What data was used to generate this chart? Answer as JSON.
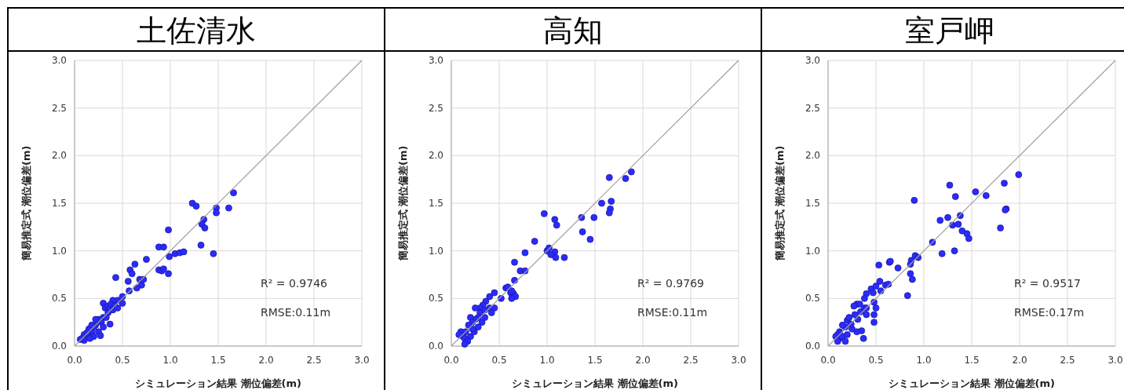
{
  "chart_data": [
    {
      "type": "scatter",
      "title": "土佐清水",
      "xlabel": "シミュレーション結果 潮位偏差(m)",
      "ylabel": "簡易推定式 潮位偏差(m)",
      "xlim": [
        0,
        3
      ],
      "ylim": [
        0,
        3
      ],
      "xticks": [
        {
          "value": 0,
          "label": "0.0"
        },
        {
          "value": 0.5,
          "label": "0.5"
        },
        {
          "value": 1,
          "label": "1.0"
        },
        {
          "value": 1.5,
          "label": "1.5"
        },
        {
          "value": 2,
          "label": "2.0"
        },
        {
          "value": 2.5,
          "label": "2.5"
        },
        {
          "value": 3,
          "label": "3.0"
        }
      ],
      "yticks": [
        {
          "value": 0,
          "label": "0.0"
        },
        {
          "value": 0.5,
          "label": "0.5"
        },
        {
          "value": 1,
          "label": "1.0"
        },
        {
          "value": 1.5,
          "label": "1.5"
        },
        {
          "value": 2,
          "label": "2.0"
        },
        {
          "value": 2.5,
          "label": "2.5"
        },
        {
          "value": 3,
          "label": "3.0"
        }
      ],
      "grid": true,
      "marker": "circle",
      "annotations": [
        "R² = 0.9746",
        "RMSE:0.11m"
      ],
      "series": [
        {
          "type": "scatter",
          "color": "#2b2bff",
          "x": [
            1.66,
            1.23,
            1.27,
            1.48,
            1.61,
            1.48,
            1.35,
            1.33,
            1.36,
            0.98,
            1.32,
            1.45,
            0.88,
            0.93,
            0.99,
            1.05,
            1.1,
            1.14,
            0.98,
            0.63,
            0.75,
            0.58,
            0.6,
            0.88,
            0.91,
            0.93,
            0.43,
            0.56,
            0.68,
            0.7,
            0.65,
            0.72,
            0.57,
            0.5,
            0.5,
            0.45,
            0.4,
            0.3,
            0.32,
            0.35,
            0.38,
            0.42,
            0.35,
            0.3,
            0.28,
            0.25,
            0.22,
            0.2,
            0.18,
            0.15,
            0.1,
            0.08,
            0.1,
            0.15,
            0.2,
            0.25,
            0.27,
            0.37,
            0.33,
            0.4,
            0.45,
            0.22,
            0.18,
            0.3,
            0.13,
            0.16,
            0.06
          ],
          "values": [
            1.61,
            1.5,
            1.47,
            1.45,
            1.45,
            1.4,
            1.33,
            1.28,
            1.24,
            1.22,
            1.06,
            0.97,
            1.04,
            1.04,
            0.94,
            0.97,
            0.98,
            0.99,
            0.76,
            0.86,
            0.91,
            0.8,
            0.76,
            0.8,
            0.79,
            0.81,
            0.72,
            0.68,
            0.7,
            0.64,
            0.61,
            0.7,
            0.58,
            0.52,
            0.45,
            0.48,
            0.48,
            0.45,
            0.4,
            0.42,
            0.44,
            0.42,
            0.35,
            0.3,
            0.25,
            0.28,
            0.22,
            0.2,
            0.15,
            0.18,
            0.12,
            0.08,
            0.06,
            0.1,
            0.1,
            0.15,
            0.11,
            0.23,
            0.3,
            0.38,
            0.4,
            0.28,
            0.22,
            0.2,
            0.14,
            0.08,
            0.07
          ]
        },
        {
          "type": "line",
          "color": "#a0a0a0",
          "marker": "none",
          "x": [
            0,
            3
          ],
          "values": [
            0,
            3
          ]
        }
      ]
    },
    {
      "type": "scatter",
      "title": "高知",
      "xlabel": "シミュレーション結果 潮位偏差(m)",
      "ylabel": "簡易推定式 潮位偏差(m)",
      "xlim": [
        0,
        3
      ],
      "ylim": [
        0,
        3
      ],
      "xticks": [
        {
          "value": 0,
          "label": "0.0"
        },
        {
          "value": 0.5,
          "label": "0.5"
        },
        {
          "value": 1,
          "label": "1.0"
        },
        {
          "value": 1.5,
          "label": "1.5"
        },
        {
          "value": 2,
          "label": "2.0"
        },
        {
          "value": 2.5,
          "label": "2.5"
        },
        {
          "value": 3,
          "label": "3.0"
        }
      ],
      "yticks": [
        {
          "value": 0,
          "label": "0.0"
        },
        {
          "value": 0.5,
          "label": "0.5"
        },
        {
          "value": 1,
          "label": "1.0"
        },
        {
          "value": 1.5,
          "label": "1.5"
        },
        {
          "value": 2,
          "label": "2.0"
        },
        {
          "value": 2.5,
          "label": "2.5"
        },
        {
          "value": 3,
          "label": "3.0"
        }
      ],
      "grid": true,
      "marker": "circle",
      "annotations": [
        "R² = 0.9769",
        "RMSE:0.11m"
      ],
      "series": [
        {
          "type": "scatter",
          "color": "#2b2bff",
          "x": [
            1.88,
            1.82,
            1.65,
            1.67,
            1.57,
            1.66,
            1.65,
            1.36,
            1.49,
            1.37,
            1.45,
            1.08,
            1.1,
            0.97,
            0.87,
            1.0,
            1.02,
            1.08,
            1.04,
            1.09,
            1.18,
            0.77,
            0.66,
            0.72,
            0.77,
            0.66,
            0.57,
            0.59,
            0.62,
            0.65,
            0.63,
            0.67,
            0.63,
            0.52,
            0.45,
            0.4,
            0.36,
            0.33,
            0.3,
            0.25,
            0.35,
            0.4,
            0.45,
            0.42,
            0.3,
            0.28,
            0.25,
            0.32,
            0.2,
            0.22,
            0.18,
            0.15,
            0.1,
            0.12,
            0.14,
            0.2,
            0.24,
            0.17,
            0.14,
            0.08,
            0.22,
            0.28,
            0.35
          ],
          "values": [
            1.83,
            1.76,
            1.77,
            1.52,
            1.5,
            1.44,
            1.4,
            1.35,
            1.35,
            1.2,
            1.12,
            1.33,
            1.27,
            1.39,
            1.1,
            1.0,
            1.03,
            0.99,
            0.96,
            0.93,
            0.93,
            0.98,
            0.88,
            0.79,
            0.79,
            0.69,
            0.61,
            0.62,
            0.56,
            0.55,
            0.58,
            0.52,
            0.5,
            0.5,
            0.56,
            0.52,
            0.47,
            0.43,
            0.4,
            0.4,
            0.38,
            0.4,
            0.4,
            0.35,
            0.35,
            0.3,
            0.28,
            0.25,
            0.3,
            0.25,
            0.22,
            0.15,
            0.15,
            0.1,
            0.08,
            0.1,
            0.15,
            0.05,
            0.02,
            0.12,
            0.18,
            0.2,
            0.3
          ]
        },
        {
          "type": "line",
          "color": "#a0a0a0",
          "marker": "none",
          "x": [
            0,
            3
          ],
          "values": [
            0,
            3
          ]
        }
      ]
    },
    {
      "type": "scatter",
      "title": "室戸岬",
      "xlabel": "シミュレーション結果 潮位偏差(m)",
      "ylabel": "簡易推定式 潮位偏差(m)",
      "xlim": [
        0,
        3
      ],
      "ylim": [
        0,
        3
      ],
      "xticks": [
        {
          "value": 0,
          "label": "0.0"
        },
        {
          "value": 0.5,
          "label": "0.5"
        },
        {
          "value": 1,
          "label": "1.0"
        },
        {
          "value": 1.5,
          "label": "1.5"
        },
        {
          "value": 2,
          "label": "2.0"
        },
        {
          "value": 2.5,
          "label": "2.5"
        },
        {
          "value": 3,
          "label": "3.0"
        }
      ],
      "yticks": [
        {
          "value": 0,
          "label": "0.0"
        },
        {
          "value": 0.5,
          "label": "0.5"
        },
        {
          "value": 1,
          "label": "1.0"
        },
        {
          "value": 1.5,
          "label": "1.5"
        },
        {
          "value": 2,
          "label": "2.0"
        },
        {
          "value": 2.5,
          "label": "2.5"
        },
        {
          "value": 3,
          "label": "3.0"
        }
      ],
      "grid": true,
      "marker": "circle",
      "annotations": [
        "R² = 0.9517",
        "RMSE:0.17m"
      ],
      "series": [
        {
          "type": "scatter",
          "color": "#2b2bff",
          "x": [
            1.99,
            1.84,
            1.27,
            1.54,
            1.65,
            1.33,
            0.9,
            1.86,
            1.85,
            1.17,
            1.25,
            1.38,
            1.3,
            1.36,
            1.4,
            1.45,
            1.47,
            1.8,
            1.09,
            1.19,
            1.32,
            0.91,
            0.87,
            0.94,
            0.86,
            0.64,
            0.65,
            0.73,
            0.86,
            0.88,
            0.53,
            0.83,
            0.54,
            0.45,
            0.5,
            0.55,
            0.6,
            0.63,
            0.47,
            0.4,
            0.38,
            0.3,
            0.33,
            0.27,
            0.34,
            0.38,
            0.4,
            0.48,
            0.5,
            0.48,
            0.48,
            0.4,
            0.31,
            0.2,
            0.22,
            0.3,
            0.35,
            0.37,
            0.25,
            0.18,
            0.15,
            0.12,
            0.1,
            0.08,
            0.12,
            0.15,
            0.2,
            0.18,
            0.1,
            0.24,
            0.28
          ],
          "values": [
            1.8,
            1.71,
            1.69,
            1.62,
            1.58,
            1.57,
            1.53,
            1.44,
            1.43,
            1.32,
            1.35,
            1.37,
            1.27,
            1.28,
            1.21,
            1.18,
            1.13,
            1.24,
            1.09,
            0.97,
            1.0,
            0.95,
            0.9,
            0.93,
            0.86,
            0.88,
            0.89,
            0.82,
            0.76,
            0.7,
            0.85,
            0.53,
            0.68,
            0.6,
            0.63,
            0.58,
            0.64,
            0.65,
            0.56,
            0.55,
            0.5,
            0.44,
            0.44,
            0.42,
            0.36,
            0.4,
            0.4,
            0.46,
            0.4,
            0.33,
            0.25,
            0.33,
            0.28,
            0.27,
            0.3,
            0.15,
            0.16,
            0.08,
            0.18,
            0.2,
            0.22,
            0.15,
            0.12,
            0.1,
            0.08,
            0.1,
            0.12,
            0.05,
            0.05,
            0.23,
            0.33
          ]
        },
        {
          "type": "line",
          "color": "#a0a0a0",
          "marker": "none",
          "x": [
            0,
            3
          ],
          "values": [
            0,
            3
          ]
        }
      ]
    }
  ]
}
